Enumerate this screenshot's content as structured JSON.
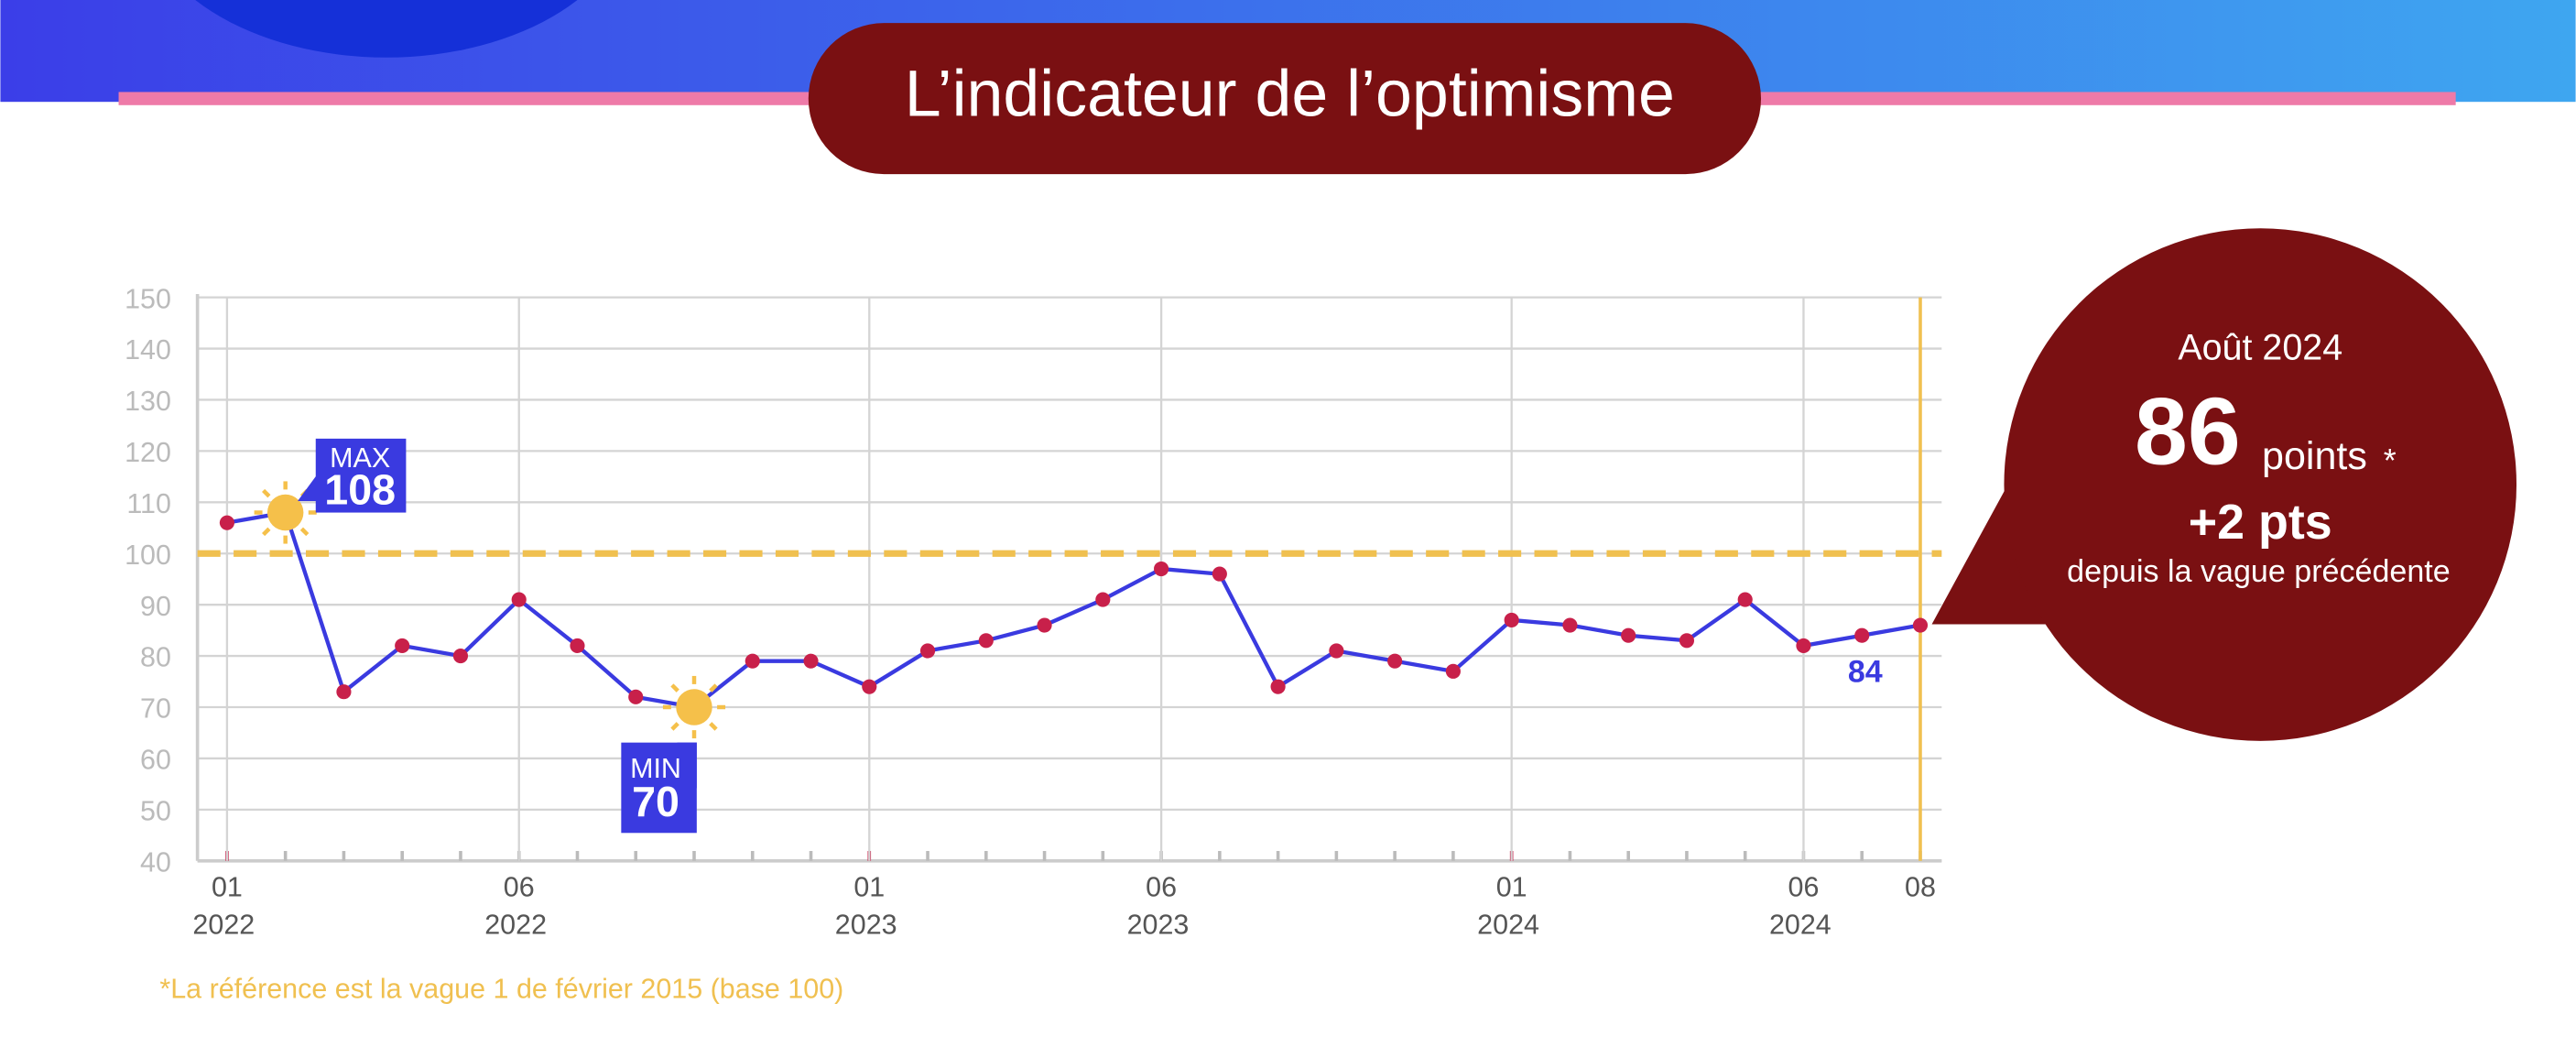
{
  "title": "L’indicateur de l’optimisme",
  "chart_data": {
    "type": "line",
    "categories": [
      "01",
      null,
      null,
      null,
      null,
      "06",
      null,
      null,
      null,
      null,
      null,
      "01",
      null,
      null,
      null,
      null,
      "06",
      null,
      null,
      null,
      null,
      null,
      "01",
      null,
      null,
      null,
      null,
      "06",
      null,
      "08"
    ],
    "category_years": [
      "2022",
      null,
      null,
      null,
      null,
      "2022",
      null,
      null,
      null,
      null,
      null,
      "2023",
      null,
      null,
      null,
      null,
      "2023",
      null,
      null,
      null,
      null,
      null,
      "2024",
      null,
      null,
      null,
      null,
      "2024",
      null,
      null
    ],
    "series": [
      {
        "color": "#3a3ae0",
        "marker_color": "#c8204a",
        "values": [
          106,
          108,
          73,
          82,
          80,
          91,
          82,
          72,
          70,
          79,
          79,
          74,
          81,
          83,
          86,
          91,
          97,
          96,
          74,
          81,
          79,
          77,
          87,
          86,
          84,
          83,
          91,
          82,
          84,
          86
        ]
      }
    ],
    "ylim": [
      40,
      150
    ],
    "yticks": [
      40,
      50,
      60,
      70,
      80,
      90,
      100,
      110,
      120,
      130,
      140,
      150
    ],
    "grid": true,
    "reference_line": {
      "value": 100,
      "color": "#f0c050"
    },
    "max_annotation": {
      "label": "MAX",
      "value": 108
    },
    "min_annotation": {
      "label": "MIN",
      "value": 70
    },
    "data_label": {
      "index": 28,
      "text": "84"
    },
    "footnote": "*La référence est la vague 1 de février 2015 (base 100)"
  },
  "callout": {
    "period": "Août 2024",
    "value": "86",
    "unit": "points",
    "asterisk": "*",
    "change": "+2 pts",
    "change_note": "depuis la vague précédente"
  }
}
